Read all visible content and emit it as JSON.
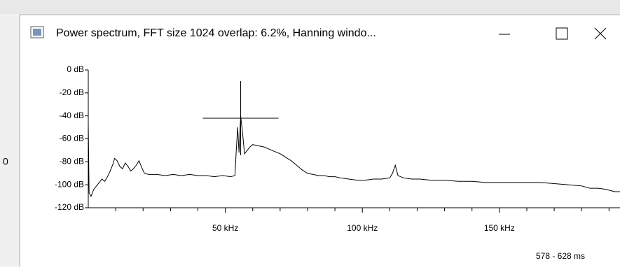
{
  "window": {
    "title": "Power spectrum, FFT size 1024 overlap: 6.2%, Hanning windo...",
    "status": "578 - 628 ms"
  },
  "background_text": "0",
  "chart_data": {
    "type": "line",
    "x": [
      0,
      0.3,
      1,
      2,
      3,
      4,
      5,
      6,
      7,
      8,
      9,
      9.6,
      10.5,
      11.5,
      12.5,
      13.5,
      14.5,
      15.5,
      16.5,
      17.5,
      18.5,
      19.5,
      20.5,
      22,
      25,
      28,
      31,
      34,
      37,
      40,
      43,
      46,
      49,
      52,
      53.5,
      54,
      54.5,
      55,
      55.6,
      56.3,
      57,
      58,
      59,
      60,
      62,
      64,
      66,
      68,
      70,
      72,
      74,
      76,
      78,
      80,
      82,
      84,
      86,
      88,
      90,
      92,
      95,
      98,
      101,
      104,
      107,
      110,
      111,
      112,
      113,
      115,
      118,
      121,
      125,
      130,
      135,
      140,
      145,
      150,
      155,
      160,
      165,
      170,
      175,
      180,
      183,
      186,
      189,
      192,
      194
    ],
    "series": [
      {
        "color": "#000000",
        "values": [
          -47,
          -107,
          -110,
          -104,
          -101,
          -98,
          -95,
          -97,
          -93,
          -88,
          -82,
          -77,
          -79,
          -84,
          -86,
          -81,
          -84,
          -88,
          -86,
          -83,
          -79,
          -85,
          -90,
          -91,
          -91,
          -92,
          -91,
          -92,
          -91,
          -92,
          -92,
          -93,
          -92,
          -93,
          -92,
          -70,
          -50,
          -72,
          -40,
          -55,
          -73,
          -70,
          -67,
          -65,
          -66,
          -67,
          -69,
          -71,
          -73,
          -76,
          -79,
          -83,
          -87,
          -90,
          -91,
          -92,
          -92,
          -93,
          -93,
          -94,
          -95,
          -96,
          -96,
          -95,
          -95,
          -94,
          -90,
          -83,
          -92,
          -94,
          -95,
          -95,
          -96,
          -96,
          -97,
          -97,
          -98,
          -98,
          -98,
          -98,
          -98,
          -99,
          -100,
          -101,
          -103,
          -103,
          -104,
          -106,
          -106
        ]
      }
    ],
    "xlim": [
      0,
      194
    ],
    "ylim": [
      -120,
      0
    ],
    "xticks": [
      {
        "value": 50,
        "label": "50 kHz"
      },
      {
        "value": 100,
        "label": "100 kHz"
      },
      {
        "value": 150,
        "label": "150 kHz"
      }
    ],
    "xticks_minor": [
      10,
      20,
      30,
      40,
      60,
      70,
      80,
      90,
      110,
      120,
      130,
      140,
      160,
      170,
      180,
      190
    ],
    "yticks": [
      {
        "value": 0,
        "label": "0 dB"
      },
      {
        "value": -20,
        "label": "-20 dB"
      },
      {
        "value": -40,
        "label": "-40 dB"
      },
      {
        "value": -60,
        "label": "-60 dB"
      },
      {
        "value": -80,
        "label": "-80 dB"
      },
      {
        "value": -100,
        "label": "-100 dB"
      },
      {
        "value": -120,
        "label": "-120 dB"
      }
    ],
    "cursor": {
      "x": 55.6,
      "y": -42
    }
  }
}
